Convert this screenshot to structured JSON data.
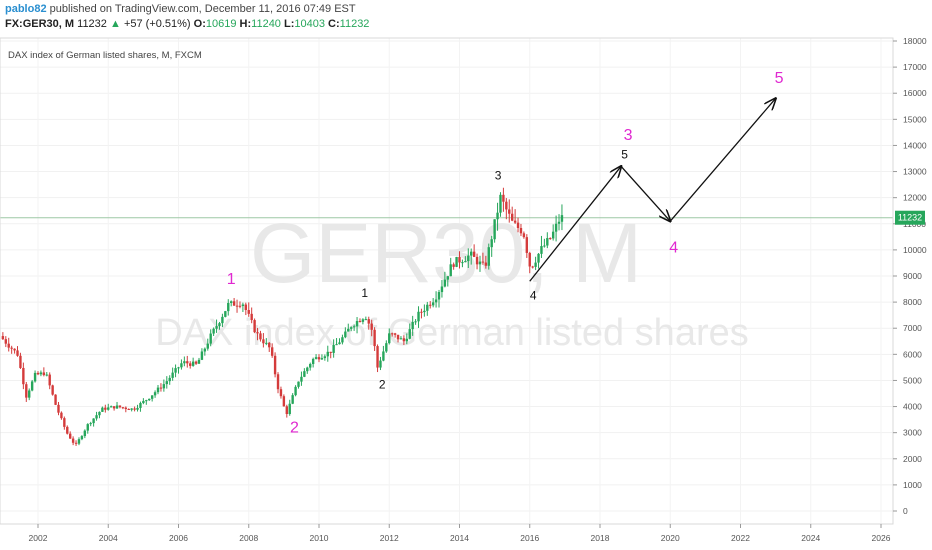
{
  "header": {
    "author": "pablo82",
    "published": "published on TradingView.com, December 11, 2016 07:49 EST",
    "symbol": "FX:GER30, M",
    "last": "11232",
    "arrow": "▲",
    "change": "+57 (+0.51%)",
    "o_label": "O:",
    "o_val": "10619",
    "h_label": "H:",
    "h_val": "11240",
    "l_label": "L:",
    "l_val": "10403",
    "c_label": "C:",
    "c_val": "11232"
  },
  "chart": {
    "title": "DAX index of German listed shares, M, FXCM",
    "watermark_symbol": "GER30, M",
    "watermark_desc": "DAX index of German listed shares",
    "price_label": "11232",
    "colors": {
      "up": "#26a65b",
      "down": "#d43b3b",
      "wave_magenta": "#e028d0",
      "price_line": "#9ec8a5"
    }
  },
  "chart_data": {
    "type": "candlestick",
    "title": "DAX index of German listed shares, M, FXCM",
    "x_ticks": [
      "2002",
      "2004",
      "2006",
      "2008",
      "2010",
      "2012",
      "2014",
      "2016",
      "2018",
      "2020",
      "2022",
      "2024",
      "2026"
    ],
    "y_ticks": [
      0,
      1000,
      2000,
      3000,
      4000,
      5000,
      6000,
      7000,
      8000,
      9000,
      10000,
      11000,
      12000,
      13000,
      14000,
      15000,
      16000,
      17000,
      18000
    ],
    "ylim": [
      -500,
      18000
    ],
    "xlim": [
      2001.0,
      2026.6
    ],
    "last_price": 11232,
    "price_path": [
      [
        2001.0,
        6700
      ],
      [
        2001.5,
        6000
      ],
      [
        2001.75,
        4400
      ],
      [
        2002.0,
        5200
      ],
      [
        2002.3,
        5300
      ],
      [
        2002.6,
        4000
      ],
      [
        2002.9,
        3000
      ],
      [
        2003.15,
        2500
      ],
      [
        2003.5,
        3300
      ],
      [
        2003.9,
        3900
      ],
      [
        2004.3,
        4000
      ],
      [
        2004.8,
        3900
      ],
      [
        2005.2,
        4300
      ],
      [
        2005.7,
        4900
      ],
      [
        2006.2,
        5700
      ],
      [
        2006.6,
        5600
      ],
      [
        2007.0,
        6700
      ],
      [
        2007.5,
        7900
      ],
      [
        2007.9,
        8000
      ],
      [
        2008.3,
        6800
      ],
      [
        2008.7,
        6200
      ],
      [
        2008.9,
        4800
      ],
      [
        2009.15,
        3700
      ],
      [
        2009.5,
        5000
      ],
      [
        2009.9,
        5800
      ],
      [
        2010.4,
        6100
      ],
      [
        2010.8,
        6700
      ],
      [
        2011.0,
        7100
      ],
      [
        2011.4,
        7500
      ],
      [
        2011.6,
        6900
      ],
      [
        2011.75,
        5500
      ],
      [
        2012.1,
        6800
      ],
      [
        2012.5,
        6500
      ],
      [
        2012.9,
        7500
      ],
      [
        2013.4,
        8200
      ],
      [
        2013.9,
        9500
      ],
      [
        2014.4,
        9800
      ],
      [
        2014.8,
        9300
      ],
      [
        2015.25,
        12000
      ],
      [
        2015.6,
        11000
      ],
      [
        2015.9,
        10700
      ],
      [
        2016.1,
        9300
      ],
      [
        2016.4,
        10000
      ],
      [
        2016.7,
        10500
      ],
      [
        2016.95,
        11232
      ]
    ],
    "wave_labels": [
      {
        "label": "1",
        "x": 2007.5,
        "y": 8700,
        "color": "magenta"
      },
      {
        "label": "2",
        "x": 2009.3,
        "y": 3000,
        "color": "magenta"
      },
      {
        "label": "1",
        "x": 2011.3,
        "y": 8200,
        "color": "black"
      },
      {
        "label": "2",
        "x": 2011.8,
        "y": 4700,
        "color": "black"
      },
      {
        "label": "3",
        "x": 2015.1,
        "y": 12700,
        "color": "black"
      },
      {
        "label": "4",
        "x": 2016.1,
        "y": 8100,
        "color": "black"
      },
      {
        "label": "3",
        "x": 2018.8,
        "y": 14200,
        "color": "magenta"
      },
      {
        "label": "5",
        "x": 2018.7,
        "y": 13500,
        "color": "black"
      },
      {
        "label": "4",
        "x": 2020.1,
        "y": 9900,
        "color": "magenta"
      },
      {
        "label": "5",
        "x": 2023.1,
        "y": 16400,
        "color": "magenta"
      }
    ],
    "projection": [
      [
        2016.0,
        8800
      ],
      [
        2018.6,
        13200
      ],
      [
        2020.0,
        11100
      ],
      [
        2023.0,
        15800
      ]
    ]
  }
}
